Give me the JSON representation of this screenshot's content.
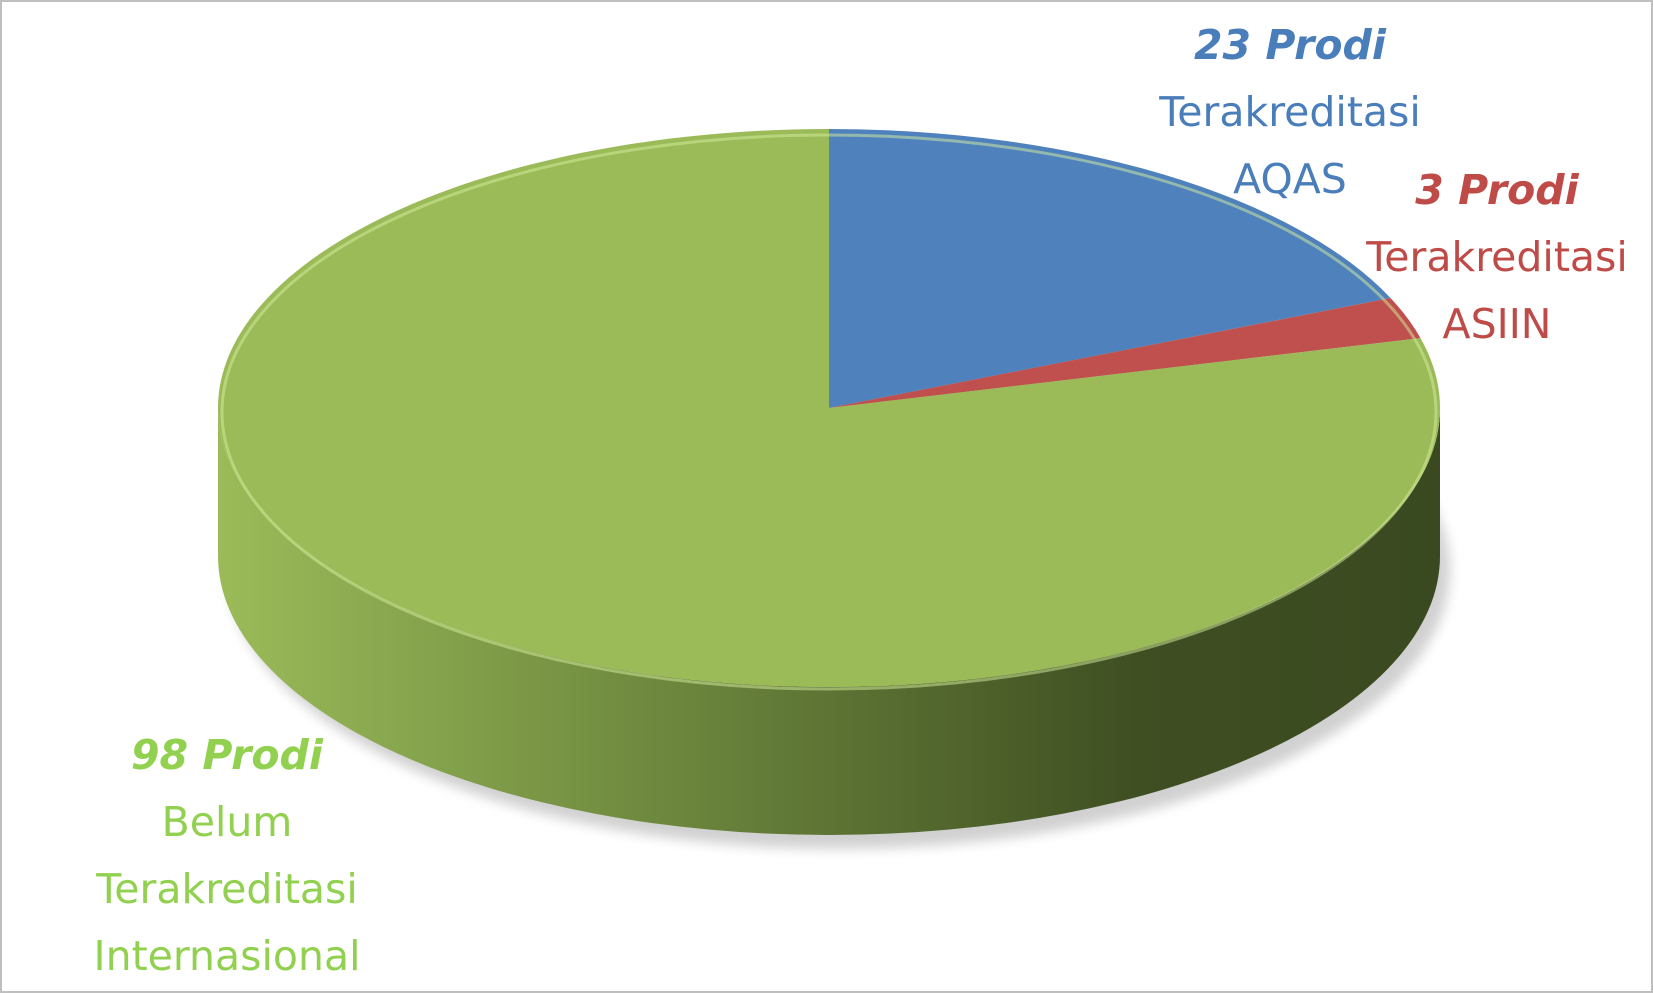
{
  "chart_data": {
    "type": "pie3d",
    "categories": [
      "Terakreditasi AQAS",
      "Terakreditasi ASIIN",
      "Belum Terakreditasi Internasional"
    ],
    "values": [
      23,
      3,
      98
    ],
    "value_labels": [
      "23 Prodi",
      "3 Prodi",
      "98 Prodi"
    ],
    "colors": [
      "#4f81bd",
      "#c0504d",
      "#9bbb59"
    ]
  }
}
